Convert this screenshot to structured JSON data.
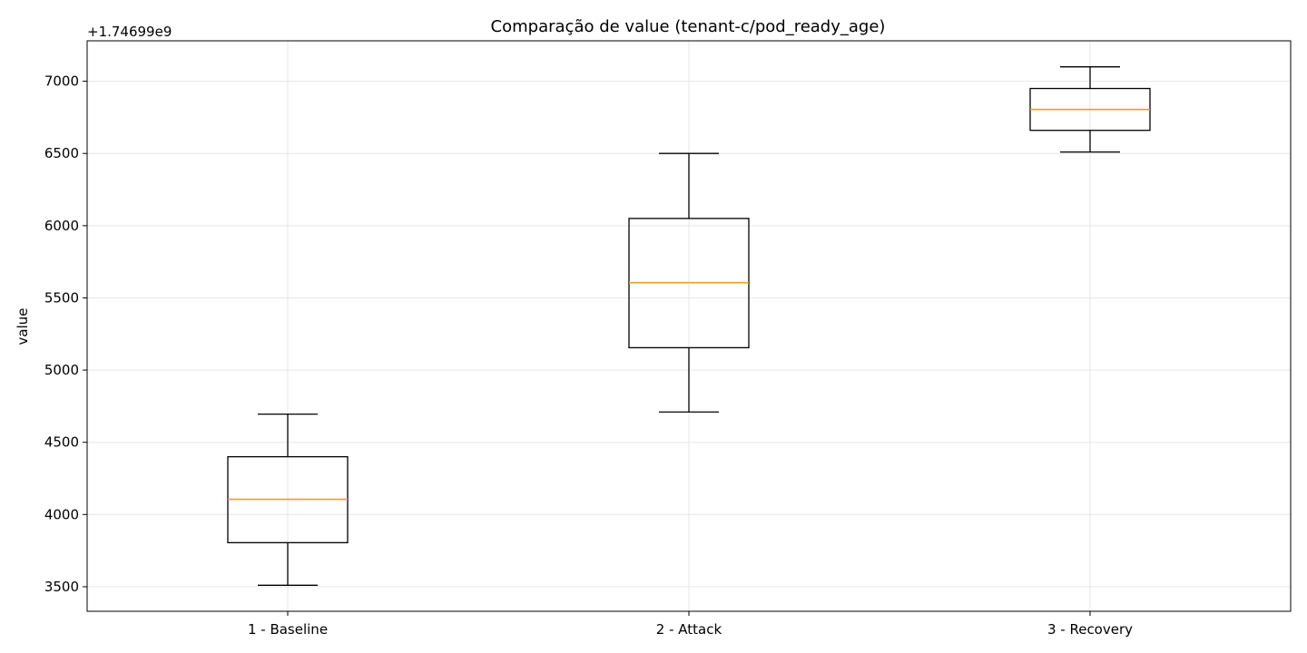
{
  "chart_data": {
    "type": "box",
    "title": "Comparação de value (tenant-c/pod_ready_age)",
    "xlabel": "",
    "ylabel": "value",
    "offset_label": "+1.74699e9",
    "ylim": [
      3330,
      7280
    ],
    "yticks": [
      3500,
      4000,
      4500,
      5000,
      5500,
      6000,
      6500,
      7000
    ],
    "grid": true,
    "categories": [
      "1 - Baseline",
      "2 - Attack",
      "3 - Recovery"
    ],
    "boxes": [
      {
        "label": "1 - Baseline",
        "whisker_low": 3510,
        "q1": 3805,
        "median": 4105,
        "q3": 4400,
        "whisker_high": 4695
      },
      {
        "label": "2 - Attack",
        "whisker_low": 4710,
        "q1": 5155,
        "median": 5605,
        "q3": 6050,
        "whisker_high": 6500
      },
      {
        "label": "3 - Recovery",
        "whisker_low": 6510,
        "q1": 6660,
        "median": 6805,
        "q3": 6950,
        "whisker_high": 7100
      }
    ],
    "colors": {
      "box": "#000000",
      "median": "#e69f22",
      "grid": "#e6e6e6"
    }
  }
}
